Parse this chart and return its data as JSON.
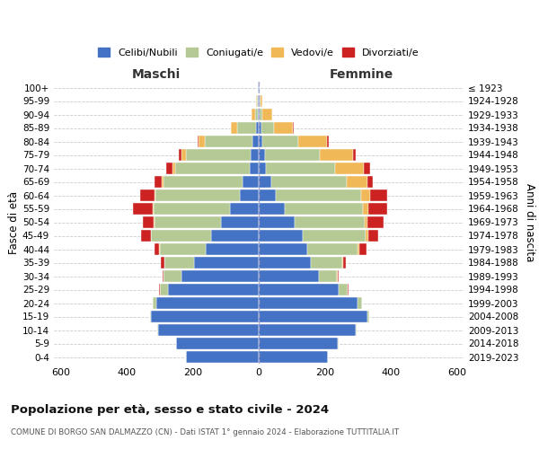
{
  "age_groups": [
    "0-4",
    "5-9",
    "10-14",
    "15-19",
    "20-24",
    "25-29",
    "30-34",
    "35-39",
    "40-44",
    "45-49",
    "50-54",
    "55-59",
    "60-64",
    "65-69",
    "70-74",
    "75-79",
    "80-84",
    "85-89",
    "90-94",
    "95-99",
    "100+"
  ],
  "birth_years": [
    "2019-2023",
    "2014-2018",
    "2009-2013",
    "2004-2008",
    "1999-2003",
    "1994-1998",
    "1989-1993",
    "1984-1988",
    "1979-1983",
    "1974-1978",
    "1969-1973",
    "1964-1968",
    "1959-1963",
    "1954-1958",
    "1949-1953",
    "1944-1948",
    "1939-1943",
    "1934-1938",
    "1929-1933",
    "1924-1928",
    "≤ 1923"
  ],
  "maschi": {
    "celibi": [
      220,
      250,
      305,
      325,
      310,
      275,
      235,
      195,
      160,
      145,
      115,
      88,
      58,
      48,
      28,
      24,
      18,
      8,
      4,
      3,
      2
    ],
    "coniugati": [
      0,
      1,
      2,
      5,
      10,
      25,
      52,
      90,
      140,
      180,
      200,
      230,
      255,
      240,
      225,
      195,
      145,
      58,
      8,
      3,
      1
    ],
    "vedovi": [
      0,
      0,
      0,
      0,
      0,
      0,
      0,
      1,
      1,
      2,
      2,
      2,
      3,
      5,
      8,
      15,
      18,
      18,
      10,
      2,
      0
    ],
    "divorziati": [
      0,
      0,
      0,
      0,
      1,
      2,
      5,
      10,
      15,
      30,
      35,
      62,
      42,
      22,
      18,
      8,
      4,
      0,
      0,
      0,
      0
    ]
  },
  "femmine": {
    "nubili": [
      210,
      240,
      295,
      330,
      300,
      242,
      182,
      158,
      148,
      132,
      108,
      78,
      52,
      38,
      22,
      18,
      12,
      8,
      4,
      3,
      2
    ],
    "coniugate": [
      0,
      1,
      2,
      5,
      12,
      28,
      55,
      95,
      152,
      192,
      212,
      238,
      258,
      228,
      208,
      168,
      108,
      38,
      8,
      3,
      1
    ],
    "vedove": [
      0,
      0,
      0,
      0,
      0,
      0,
      1,
      2,
      5,
      8,
      10,
      15,
      28,
      62,
      88,
      100,
      88,
      58,
      28,
      5,
      0
    ],
    "divorziate": [
      0,
      0,
      0,
      0,
      1,
      2,
      4,
      8,
      20,
      30,
      48,
      58,
      52,
      18,
      18,
      8,
      5,
      3,
      0,
      0,
      0
    ]
  },
  "colors": {
    "celibi_nubili": "#4472c4",
    "coniugati": "#b5c994",
    "vedovi": "#f0b856",
    "divorziati": "#cc2222"
  },
  "xlim": 620,
  "title": "Popolazione per età, sesso e stato civile - 2024",
  "subtitle": "COMUNE DI BORGO SAN DALMAZZO (CN) - Dati ISTAT 1° gennaio 2024 - Elaborazione TUTTITALIA.IT",
  "ylabel": "Fasce di età",
  "ylabel2": "Anni di nascita",
  "legend_labels": [
    "Celibi/Nubili",
    "Coniugati/e",
    "Vedovi/e",
    "Divorziati/e"
  ],
  "maschi_label": "Maschi",
  "femmine_label": "Femmine"
}
